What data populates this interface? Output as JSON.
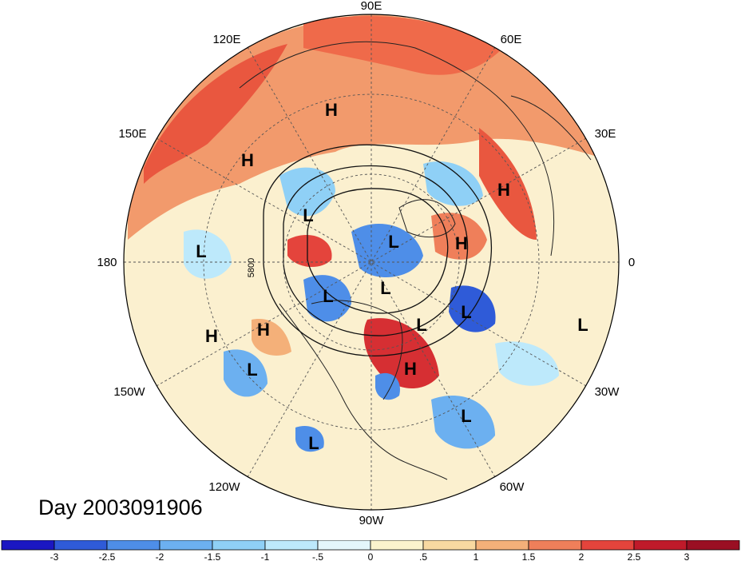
{
  "title": "Day 2003091906",
  "projection": "north-polar-stereographic",
  "longitude_labels": [
    "90E",
    "60E",
    "120E",
    "150E",
    "30E",
    "180",
    "0",
    "150W",
    "30W",
    "120W",
    "60W",
    "90W"
  ],
  "contour_label": "5800",
  "pressure_systems": [
    {
      "type": "H",
      "region": "central-siberia"
    },
    {
      "type": "H",
      "region": "kamchatka-sea"
    },
    {
      "type": "H",
      "region": "ural"
    },
    {
      "type": "H",
      "region": "scandinavia"
    },
    {
      "type": "H",
      "region": "north-pacific"
    },
    {
      "type": "H",
      "region": "gulf-of-alaska"
    },
    {
      "type": "H",
      "region": "eastern-canada"
    },
    {
      "type": "L",
      "region": "east-siberia"
    },
    {
      "type": "L",
      "region": "arctic"
    },
    {
      "type": "L",
      "region": "canadian-archipelago"
    },
    {
      "type": "L",
      "region": "western-pacific"
    },
    {
      "type": "L",
      "region": "alaska"
    },
    {
      "type": "L",
      "region": "greenland"
    },
    {
      "type": "L",
      "region": "north-atlantic"
    },
    {
      "type": "L",
      "region": "east-atlantic"
    },
    {
      "type": "L",
      "region": "northeast-pacific"
    },
    {
      "type": "L",
      "region": "central-atlantic"
    },
    {
      "type": "L",
      "region": "eastern-pacific"
    }
  ],
  "colorbar": {
    "tick_labels": [
      "-3",
      "-2.5",
      "-2",
      "-1.5",
      "-1",
      "-.5",
      "0",
      ".5",
      "1",
      "1.5",
      "2",
      "2.5",
      "3"
    ],
    "colors": [
      "#1b17c2",
      "#2f5bd8",
      "#4e8ee8",
      "#6cb0f0",
      "#8fd0f6",
      "#bde9fb",
      "#e4f6fb",
      "#fbf3cd",
      "#f8d9a1",
      "#f4b079",
      "#ef7f5a",
      "#e4443c",
      "#c01a2a",
      "#9a0f23"
    ]
  }
}
